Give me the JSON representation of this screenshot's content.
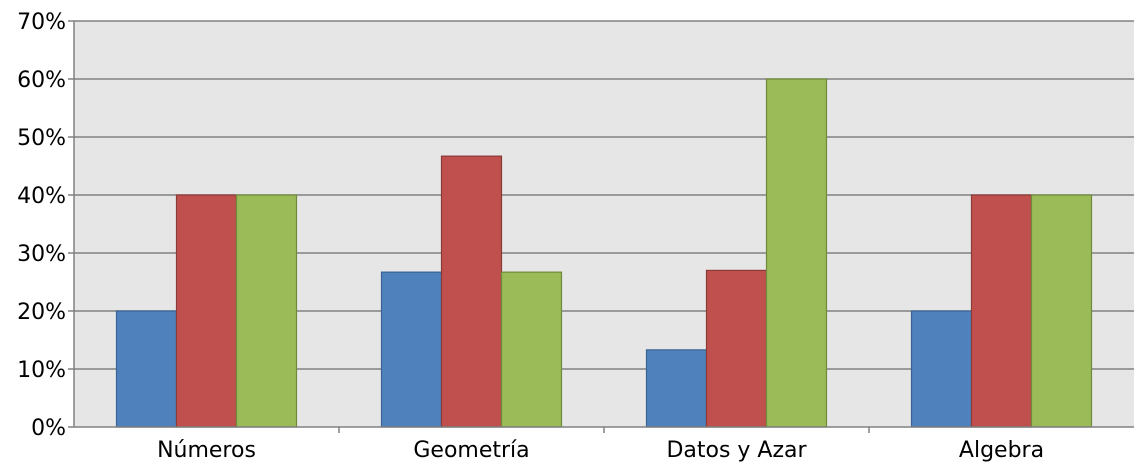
{
  "chart_data": {
    "type": "bar",
    "title": "",
    "xlabel": "",
    "ylabel": "",
    "categories": [
      "Números",
      "Geometría",
      "Datos y Azar",
      "Algebra"
    ],
    "series": [
      {
        "values": [
          20,
          26.7,
          13.3,
          20
        ],
        "color": "#4F81BD",
        "stroke": "#3A6393"
      },
      {
        "values": [
          40,
          46.7,
          27,
          40
        ],
        "color": "#C0504D",
        "stroke": "#8C3A38"
      },
      {
        "values": [
          40,
          26.7,
          60,
          40
        ],
        "color": "#9BBB59",
        "stroke": "#6F8A3A"
      }
    ],
    "ylim": [
      0,
      70
    ],
    "yticks": [
      0,
      10,
      20,
      30,
      40,
      50,
      60,
      70
    ],
    "ytick_labels": [
      "0%",
      "10%",
      "20%",
      "30%",
      "40%",
      "50%",
      "60%",
      "70%"
    ],
    "grid": true,
    "legend": "none",
    "plot_background": "#E6E6E6",
    "gridline_color": "#808080"
  }
}
